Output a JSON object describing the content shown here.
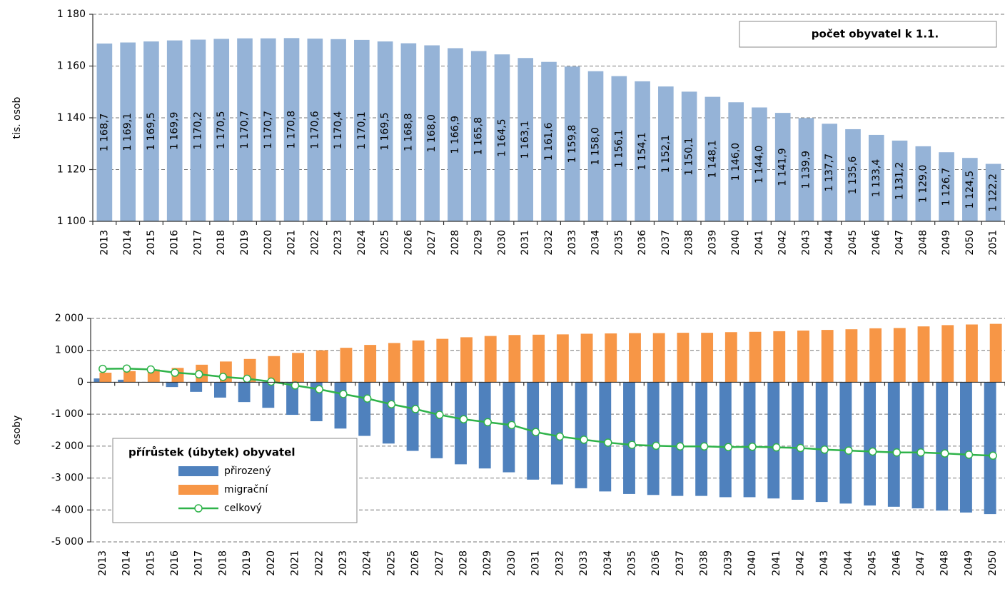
{
  "chart_data": [
    {
      "type": "bar",
      "title": "počet obyvatel k 1.1.",
      "ylabel": "tis. osob",
      "categories": [
        "2013",
        "2014",
        "2015",
        "2016",
        "2017",
        "2018",
        "2019",
        "2020",
        "2021",
        "2022",
        "2023",
        "2024",
        "2025",
        "2026",
        "2027",
        "2028",
        "2029",
        "2030",
        "2031",
        "2032",
        "2033",
        "2034",
        "2035",
        "2036",
        "2037",
        "2038",
        "2039",
        "2040",
        "2041",
        "2042",
        "2043",
        "2044",
        "2045",
        "2046",
        "2047",
        "2048",
        "2049",
        "2050",
        "2051"
      ],
      "values": [
        1168.7,
        1169.1,
        1169.5,
        1169.9,
        1170.2,
        1170.5,
        1170.7,
        1170.7,
        1170.8,
        1170.6,
        1170.4,
        1170.1,
        1169.5,
        1168.8,
        1168.0,
        1166.9,
        1165.8,
        1164.5,
        1163.1,
        1161.6,
        1159.8,
        1158.0,
        1156.1,
        1154.1,
        1152.1,
        1150.1,
        1148.1,
        1146.0,
        1144.0,
        1141.9,
        1139.9,
        1137.7,
        1135.6,
        1133.4,
        1131.2,
        1129.0,
        1126.7,
        1124.5,
        1122.2
      ],
      "value_labels": [
        "1 168,7",
        "1 169,1",
        "1 169,5",
        "1 169,9",
        "1 170,2",
        "1 170,5",
        "1 170,7",
        "1 170,7",
        "1 170,8",
        "1 170,6",
        "1 170,4",
        "1 170,1",
        "1 169,5",
        "1 168,8",
        "1 168,0",
        "1 166,9",
        "1 165,8",
        "1 164,5",
        "1 163,1",
        "1 161,6",
        "1 159,8",
        "1 158,0",
        "1 156,1",
        "1 154,1",
        "1 152,1",
        "1 150,1",
        "1 148,1",
        "1 146,0",
        "1 144,0",
        "1 141,9",
        "1 139,9",
        "1 137,7",
        "1 135,6",
        "1 133,4",
        "1 131,2",
        "1 129,0",
        "1 126,7",
        "1 124,5",
        "1 122,2"
      ],
      "color": "#95b3d7",
      "ylim": [
        1100,
        1180
      ],
      "yticks": [
        {
          "value": 1100,
          "label": "1 100"
        },
        {
          "value": 1120,
          "label": "1 120"
        },
        {
          "value": 1140,
          "label": "1 140"
        },
        {
          "value": 1160,
          "label": "1 160"
        },
        {
          "value": 1180,
          "label": "1 180"
        }
      ],
      "grid": true
    },
    {
      "type": "bar_line",
      "ylabel": "osoby",
      "legend_title": "přírůstek (úbytek) obyvatel",
      "legend": "lower left",
      "categories": [
        "2013",
        "2014",
        "2015",
        "2016",
        "2017",
        "2018",
        "2019",
        "2020",
        "2021",
        "2022",
        "2023",
        "2024",
        "2025",
        "2026",
        "2027",
        "2028",
        "2029",
        "2030",
        "2031",
        "2032",
        "2033",
        "2034",
        "2035",
        "2036",
        "2037",
        "2038",
        "2039",
        "2040",
        "2041",
        "2042",
        "2043",
        "2044",
        "2045",
        "2046",
        "2047",
        "2048",
        "2049",
        "2050"
      ],
      "series": [
        {
          "name": "přirozený",
          "type": "bar",
          "color": "#4f81bd",
          "values": [
            120,
            80,
            0,
            -150,
            -300,
            -480,
            -620,
            -800,
            -1020,
            -1220,
            -1450,
            -1680,
            -1920,
            -2150,
            -2380,
            -2570,
            -2700,
            -2820,
            -3050,
            -3200,
            -3320,
            -3420,
            -3500,
            -3530,
            -3560,
            -3560,
            -3600,
            -3600,
            -3640,
            -3680,
            -3750,
            -3800,
            -3860,
            -3900,
            -3950,
            -4020,
            -4080,
            -4130
          ]
        },
        {
          "name": "migrační",
          "type": "bar",
          "color": "#f79646",
          "values": [
            300,
            350,
            400,
            450,
            550,
            650,
            730,
            820,
            920,
            1000,
            1080,
            1170,
            1230,
            1310,
            1360,
            1410,
            1450,
            1480,
            1490,
            1500,
            1520,
            1530,
            1540,
            1540,
            1550,
            1550,
            1570,
            1580,
            1600,
            1620,
            1640,
            1660,
            1690,
            1700,
            1750,
            1790,
            1810,
            1830
          ]
        },
        {
          "name": "celkový",
          "type": "line",
          "color": "#2fb34a",
          "values": [
            420,
            430,
            400,
            300,
            250,
            170,
            110,
            20,
            -100,
            -220,
            -370,
            -510,
            -690,
            -840,
            -1020,
            -1160,
            -1250,
            -1340,
            -1560,
            -1700,
            -1800,
            -1890,
            -1960,
            -1990,
            -2010,
            -2010,
            -2030,
            -2020,
            -2040,
            -2060,
            -2110,
            -2140,
            -2170,
            -2200,
            -2200,
            -2230,
            -2270,
            -2300
          ]
        }
      ],
      "ylim": [
        -5000,
        2000
      ],
      "yticks": [
        {
          "value": -5000,
          "label": "-5 000"
        },
        {
          "value": -4000,
          "label": "-4 000"
        },
        {
          "value": -3000,
          "label": "-3 000"
        },
        {
          "value": -2000,
          "label": "-2 000"
        },
        {
          "value": -1000,
          "label": "-1 000"
        },
        0,
        {
          "value": 1000,
          "label": "1 000"
        },
        {
          "value": 2000,
          "label": "2 000"
        }
      ],
      "grid": true
    }
  ]
}
